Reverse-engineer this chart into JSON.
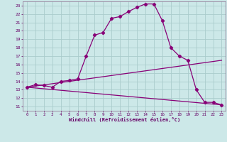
{
  "xlabel": "Windchill (Refroidissement éolien,°C)",
  "bg_color": "#cce8e8",
  "grid_color": "#aacccc",
  "line_color": "#880077",
  "x_ticks": [
    0,
    1,
    2,
    3,
    4,
    5,
    6,
    7,
    8,
    9,
    10,
    11,
    12,
    13,
    14,
    15,
    16,
    17,
    18,
    19,
    20,
    21,
    22,
    23
  ],
  "y_ticks": [
    11,
    12,
    13,
    14,
    15,
    16,
    17,
    18,
    19,
    20,
    21,
    22,
    23
  ],
  "xlim": [
    -0.5,
    23.5
  ],
  "ylim": [
    10.5,
    23.5
  ],
  "curve1_x": [
    0,
    1,
    2,
    3,
    4,
    5,
    6,
    7,
    8,
    9,
    10,
    11,
    12,
    13,
    14,
    15,
    16,
    17,
    18,
    19,
    20,
    21,
    22,
    23
  ],
  "curve1_y": [
    13.3,
    13.6,
    13.5,
    13.3,
    14.0,
    14.1,
    14.3,
    17.0,
    19.5,
    19.8,
    21.5,
    21.7,
    22.3,
    22.8,
    23.2,
    23.2,
    21.2,
    18.0,
    17.0,
    16.5,
    13.0,
    11.5,
    11.5,
    11.2
  ],
  "curve2_x": [
    0,
    23
  ],
  "curve2_y": [
    13.3,
    16.5
  ],
  "curve3_x": [
    0,
    23
  ],
  "curve3_y": [
    13.3,
    11.2
  ],
  "marker": "D",
  "markersize": 2.2,
  "linewidth": 0.9
}
